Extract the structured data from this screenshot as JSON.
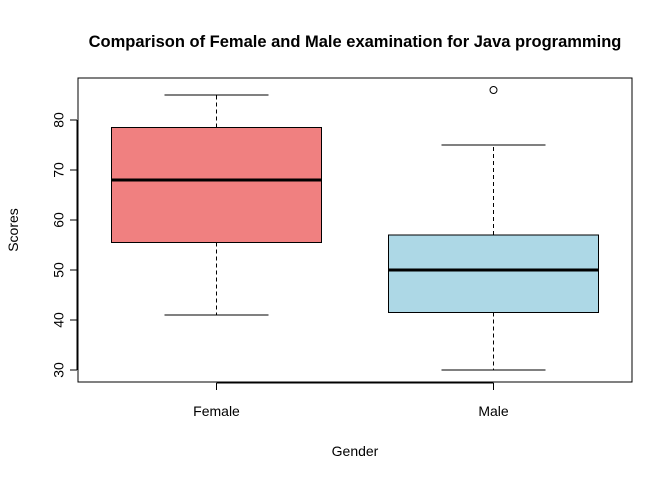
{
  "chart_data": {
    "type": "boxplot",
    "title": "Comparison of Female and Male examination for Java programming",
    "xlabel": "Gender",
    "ylabel": "Scores",
    "categories": [
      "Female",
      "Male"
    ],
    "yticks": [
      30,
      40,
      50,
      60,
      70,
      80
    ],
    "ylim": [
      27.6,
      88.4
    ],
    "grid": false,
    "legend": "none",
    "boxes": [
      {
        "category": "Female",
        "min": 41,
        "q1": 55.5,
        "median": 68,
        "q3": 78.5,
        "max": 85,
        "outliers": [],
        "color": "#f08080"
      },
      {
        "category": "Male",
        "min": 30,
        "q1": 41.5,
        "median": 50,
        "q3": 57,
        "max": 75,
        "outliers": [
          86
        ],
        "color": "#add8e6"
      }
    ]
  }
}
